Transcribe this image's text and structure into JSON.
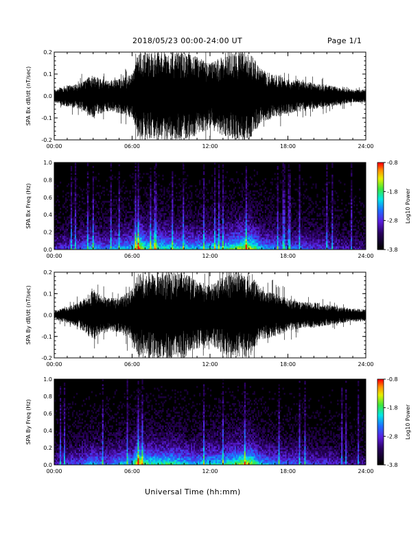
{
  "header": {
    "title": "2018/05/23  00:00-24:00 UT",
    "page": "Page 1/1"
  },
  "x_axis_label": "Universal Time (hh:mm)",
  "colorbar": {
    "label": "Log10 Power",
    "ticks": [
      "-0.8",
      "-1.8",
      "-2.8",
      "-3.8"
    ]
  },
  "chart_data": [
    {
      "type": "line",
      "ylabel": "SPA Bx dB/dt (nT/sec)",
      "xticks": [
        "00:00",
        "06:00",
        "12:00",
        "18:00",
        "24:00"
      ],
      "yticks": [
        "0.2",
        "0.1",
        "0.0",
        "-0.1",
        "-0.2"
      ],
      "xlim": [
        0,
        24
      ],
      "ylim": [
        -0.2,
        0.2
      ],
      "series": [
        {
          "x": [
            0,
            1,
            2,
            3,
            4,
            5,
            6,
            6.5,
            7,
            8,
            9,
            10,
            11,
            12,
            13,
            14,
            15,
            16,
            17,
            18,
            19,
            20,
            21,
            22,
            23,
            24
          ],
          "values": [
            0.03,
            0.05,
            0.06,
            0.1,
            0.07,
            0.08,
            0.1,
            0.2,
            0.2,
            0.2,
            0.2,
            0.2,
            0.18,
            0.15,
            0.18,
            0.2,
            0.2,
            0.12,
            0.1,
            0.08,
            0.07,
            0.06,
            0.05,
            0.04,
            0.03,
            0.03
          ]
        }
      ]
    },
    {
      "type": "heatmap",
      "ylabel": "SPA Bx Freq (Hz)",
      "xticks": [
        "00:00",
        "06:00",
        "12:00",
        "18:00",
        "24:00"
      ],
      "yticks": [
        "1.0",
        "0.8",
        "0.6",
        "0.4",
        "0.2",
        "0.0"
      ],
      "xlim": [
        0,
        24
      ],
      "ylim": [
        0,
        1
      ],
      "zlim": [
        -3.8,
        -0.8
      ],
      "intensity_profile": {
        "x": [
          0,
          1,
          2,
          3,
          4,
          5,
          6,
          6.5,
          7,
          8,
          9,
          10,
          11,
          12,
          13,
          14,
          15,
          16,
          17,
          18,
          19,
          20,
          21,
          22,
          23,
          24
        ],
        "values": [
          0.25,
          0.3,
          0.35,
          0.45,
          0.35,
          0.45,
          0.45,
          0.8,
          0.55,
          0.55,
          0.5,
          0.5,
          0.45,
          0.5,
          0.5,
          0.6,
          0.7,
          0.45,
          0.4,
          0.35,
          0.35,
          0.3,
          0.3,
          0.25,
          0.2,
          0.2
        ]
      }
    },
    {
      "type": "line",
      "ylabel": "SPA By dB/dt (nT/sec)",
      "xticks": [
        "00:00",
        "06:00",
        "12:00",
        "18:00",
        "24:00"
      ],
      "yticks": [
        "0.2",
        "0.1",
        "0.0",
        "-0.1",
        "-0.2"
      ],
      "xlim": [
        0,
        24
      ],
      "ylim": [
        -0.2,
        0.2
      ],
      "series": [
        {
          "x": [
            0,
            1,
            2,
            3,
            4,
            5,
            6,
            6.5,
            7,
            8,
            9,
            10,
            11,
            12,
            13,
            14,
            15,
            16,
            17,
            18,
            19,
            20,
            21,
            22,
            23,
            24
          ],
          "values": [
            0.02,
            0.04,
            0.06,
            0.12,
            0.08,
            0.08,
            0.12,
            0.2,
            0.18,
            0.2,
            0.2,
            0.2,
            0.16,
            0.14,
            0.18,
            0.2,
            0.2,
            0.12,
            0.1,
            0.08,
            0.06,
            0.06,
            0.05,
            0.04,
            0.03,
            0.03
          ]
        }
      ]
    },
    {
      "type": "heatmap",
      "ylabel": "SPA By Freq (Hz)",
      "xticks": [
        "00:00",
        "06:00",
        "12:00",
        "18:00",
        "24:00"
      ],
      "yticks": [
        "1.0",
        "0.8",
        "0.6",
        "0.4",
        "0.2",
        "0.0"
      ],
      "xlim": [
        0,
        24
      ],
      "ylim": [
        0,
        1
      ],
      "zlim": [
        -3.8,
        -0.8
      ],
      "intensity_profile": {
        "x": [
          0,
          1,
          2,
          3,
          4,
          5,
          6,
          6.5,
          7,
          8,
          9,
          10,
          11,
          12,
          13,
          14,
          15,
          16,
          17,
          18,
          19,
          20,
          21,
          22,
          23,
          24
        ],
        "values": [
          0.25,
          0.3,
          0.35,
          0.45,
          0.35,
          0.45,
          0.45,
          0.8,
          0.55,
          0.55,
          0.55,
          0.5,
          0.45,
          0.5,
          0.5,
          0.6,
          0.7,
          0.45,
          0.4,
          0.35,
          0.35,
          0.3,
          0.3,
          0.25,
          0.2,
          0.2
        ]
      }
    }
  ]
}
